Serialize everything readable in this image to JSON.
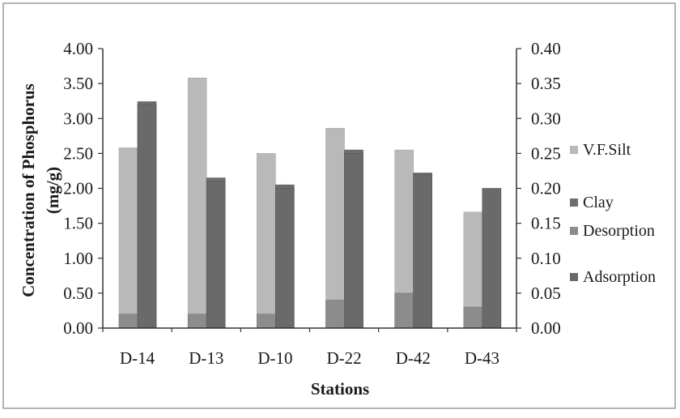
{
  "chart_data": {
    "type": "bar",
    "categories": [
      "D-14",
      "D-13",
      "D-10",
      "D-22",
      "D-42",
      "D-43"
    ],
    "series": [
      {
        "name": "V.F.Silt",
        "axis": "left",
        "values": [
          2.58,
          3.58,
          2.5,
          2.86,
          2.55,
          1.66
        ]
      },
      {
        "name": "Clay",
        "axis": "left",
        "values": [
          3.24,
          2.15,
          2.05,
          2.55,
          2.22,
          1.98
        ]
      },
      {
        "name": "Desorption",
        "axis": "right",
        "values": [
          0.02,
          0.02,
          0.02,
          0.04,
          0.05,
          0.03
        ]
      },
      {
        "name": "Adsorption",
        "axis": "right",
        "values": [
          0.32,
          0.21,
          0.2,
          0.25,
          0.22,
          0.2
        ]
      }
    ],
    "xlabel": "Stations",
    "ylabel": "Concentration of Phosphorus (mg/g)",
    "ylabel_line1": "Concentration of Phosphorus",
    "ylabel_line2": "(mg/g)",
    "ylim": [
      0,
      4
    ],
    "y2lim": [
      0,
      0.4
    ],
    "yticks": [
      "0.00",
      "0.50",
      "1.00",
      "1.50",
      "2.00",
      "2.50",
      "3.00",
      "3.50",
      "4.00"
    ],
    "y2ticks": [
      "0.00",
      "0.05",
      "0.10",
      "0.15",
      "0.20",
      "0.25",
      "0.30",
      "0.35",
      "0.40"
    ],
    "legend_position": "right",
    "grid": false,
    "colors": {
      "V.F.Silt": "#b9b9b9",
      "Clay": "#6e6e6e",
      "Desorption": "#8c8c8c",
      "Adsorption": "#6a6a6a"
    }
  }
}
